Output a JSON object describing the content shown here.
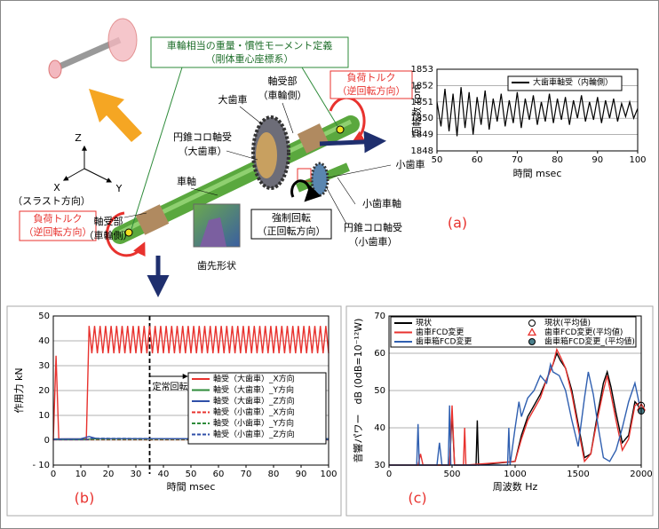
{
  "chart_data": [
    {
      "type": "line",
      "panel_label": "(a)",
      "xlabel": "時間 msec",
      "ylabel": "回転数 rpm",
      "xlim": [
        50,
        100
      ],
      "ylim": [
        1848,
        1853
      ],
      "xticks": [
        50,
        60,
        70,
        80,
        90,
        100
      ],
      "yticks": [
        1848,
        1849,
        1850,
        1851,
        1852,
        1853
      ],
      "grid": true,
      "series": [
        {
          "name": "大歯車軸受（内輪側）",
          "color": "#000000",
          "x": [
            50,
            51,
            52,
            53,
            54,
            55,
            56,
            57,
            58,
            59,
            60,
            61,
            62,
            63,
            64,
            65,
            66,
            67,
            68,
            69,
            70,
            71,
            72,
            73,
            74,
            75,
            76,
            77,
            78,
            79,
            80,
            81,
            82,
            83,
            84,
            85,
            86,
            87,
            88,
            89,
            90,
            91,
            92,
            93,
            94,
            95,
            96,
            97,
            98,
            99,
            100
          ],
          "values": [
            1851.0,
            1849.5,
            1851.8,
            1849.2,
            1851.5,
            1848.9,
            1851.9,
            1849.4,
            1851.6,
            1849.0,
            1851.3,
            1849.6,
            1851.7,
            1849.3,
            1851.2,
            1849.8,
            1851.5,
            1849.5,
            1851.1,
            1849.7,
            1851.6,
            1849.4,
            1851.2,
            1849.9,
            1851.4,
            1849.6,
            1851.0,
            1849.8,
            1851.5,
            1849.7,
            1851.2,
            1849.9,
            1851.3,
            1849.6,
            1851.1,
            1850.0,
            1851.4,
            1849.8,
            1851.0,
            1849.9,
            1851.3,
            1849.7,
            1851.1,
            1850.0,
            1851.2,
            1849.8,
            1850.9,
            1850.1,
            1851.0,
            1850.0,
            1850.6
          ]
        }
      ]
    },
    {
      "type": "line",
      "panel_label": "(b)",
      "xlabel": "時間 msec",
      "ylabel": "作用力 kN",
      "xlim": [
        0,
        100
      ],
      "ylim": [
        -10,
        50
      ],
      "xticks": [
        0,
        10,
        20,
        30,
        40,
        50,
        60,
        70,
        80,
        90,
        100
      ],
      "yticks": [
        {
          "value": -10,
          "label": "- 10"
        },
        0,
        10,
        20,
        30,
        40,
        50
      ],
      "grid": true,
      "annotations": [
        {
          "text": "定常回転",
          "x": 35
        }
      ],
      "series": [
        {
          "name": "軸受（大歯車）_X方向",
          "color": "#e8322e",
          "dashed": false,
          "x": [
            0,
            1,
            2,
            12,
            13,
            14,
            15,
            16,
            17,
            18,
            19,
            20,
            21,
            22,
            23,
            24,
            25,
            26,
            27,
            28,
            29,
            30,
            31,
            32,
            33,
            34,
            35,
            36,
            37,
            38,
            39,
            40,
            41,
            42,
            43,
            44,
            45,
            46,
            47,
            48,
            49,
            50,
            51,
            52,
            53,
            54,
            55,
            56,
            57,
            58,
            59,
            60,
            61,
            62,
            63,
            64,
            65,
            66,
            67,
            68,
            69,
            70,
            71,
            72,
            73,
            74,
            75,
            76,
            77,
            78,
            79,
            80,
            81,
            82,
            83,
            84,
            85,
            86,
            87,
            88,
            89,
            90,
            91,
            92,
            93,
            94,
            95,
            96,
            97,
            98,
            99,
            100
          ],
          "values": [
            0,
            34,
            0.5,
            0.5,
            46,
            35,
            46,
            35,
            46,
            35,
            46,
            35,
            46,
            35,
            46,
            35,
            46,
            35,
            46,
            35,
            46,
            35,
            46,
            35,
            46,
            35,
            46,
            35,
            46,
            35,
            46,
            35,
            46,
            35,
            46,
            35,
            46,
            35,
            46,
            35,
            46,
            35,
            46,
            35,
            46,
            35,
            46,
            35,
            46,
            35,
            46,
            35,
            46,
            35,
            46,
            35,
            46,
            35,
            46,
            35,
            46,
            35,
            46,
            35,
            46,
            35,
            46,
            35,
            46,
            35,
            46,
            35,
            46,
            35,
            46,
            35,
            46,
            35,
            46,
            35,
            46,
            35,
            46,
            35,
            46,
            35,
            46,
            35,
            46,
            35,
            46,
            35
          ]
        },
        {
          "name": "軸受（大歯車）_Y方向",
          "color": "#2e8b3a",
          "dashed": false,
          "x": [
            0,
            12,
            14,
            100
          ],
          "values": [
            0.3,
            0.3,
            0.6,
            0.5
          ]
        },
        {
          "name": "軸受（大歯車）_Z方向",
          "color": "#2f4fa8",
          "dashed": false,
          "x": [
            0,
            10,
            13,
            16,
            100
          ],
          "values": [
            0.5,
            0.6,
            1.5,
            0.6,
            0.6
          ]
        },
        {
          "name": "軸受（小歯車）_X方向",
          "color": "#e8322e",
          "dashed": true,
          "x": [
            0,
            100
          ],
          "values": [
            0.2,
            0.2
          ]
        },
        {
          "name": "軸受（小歯車）_Y方向",
          "color": "#2e8b3a",
          "dashed": true,
          "x": [
            0,
            100
          ],
          "values": [
            0.4,
            0.4
          ]
        },
        {
          "name": "軸受（小歯車）_Z方向",
          "color": "#2f4fa8",
          "dashed": true,
          "x": [
            0,
            12,
            14,
            100
          ],
          "values": [
            0.3,
            0.3,
            0.8,
            0.3
          ]
        }
      ]
    },
    {
      "type": "line",
      "panel_label": "(c)",
      "xlabel": "周波数 Hz",
      "ylabel": "音響パワー　dB (0dB=10⁻¹²W)",
      "xlim": [
        0,
        2000
      ],
      "ylim": [
        30,
        70
      ],
      "xticks": [
        0,
        500,
        1000,
        1500,
        2000
      ],
      "yticks": [
        30,
        40,
        50,
        60,
        70
      ],
      "grid": true,
      "series": [
        {
          "name": "現状",
          "color": "#000000",
          "x": [
            0,
            480,
            500,
            520,
            690,
            700,
            710,
            1000,
            1050,
            1100,
            1150,
            1200,
            1250,
            1300,
            1330,
            1360,
            1400,
            1450,
            1500,
            1550,
            1600,
            1650,
            1700,
            1730,
            1760,
            1800,
            1850,
            1900,
            1950,
            2000
          ],
          "values": [
            30,
            30,
            44,
            30,
            30,
            42,
            30,
            31,
            38,
            43,
            46,
            49,
            53,
            57,
            60,
            58,
            56,
            50,
            41,
            32,
            33,
            43,
            52,
            55,
            51,
            44,
            36,
            38,
            47,
            45
          ]
        },
        {
          "name": "歯車FCD変更",
          "color": "#e8322e",
          "x": [
            0,
            230,
            250,
            270,
            480,
            500,
            520,
            590,
            600,
            610,
            1000,
            1050,
            1100,
            1150,
            1200,
            1250,
            1300,
            1330,
            1360,
            1400,
            1450,
            1500,
            1550,
            1600,
            1650,
            1700,
            1730,
            1760,
            1800,
            1850,
            1900,
            1950,
            2000
          ],
          "values": [
            30,
            30,
            33,
            30,
            30,
            46,
            30,
            30,
            40,
            30,
            31,
            37,
            42,
            45,
            48,
            53,
            57,
            61,
            59,
            56,
            49,
            40,
            31,
            33,
            42,
            50,
            54,
            49,
            42,
            34,
            37,
            46,
            47
          ]
        },
        {
          "name": "歯車箱FCD変更",
          "color": "#2f5fb0",
          "x": [
            0,
            220,
            230,
            240,
            380,
            400,
            420,
            470,
            480,
            490,
            940,
            950,
            960,
            1000,
            1030,
            1050,
            1100,
            1150,
            1200,
            1250,
            1280,
            1300,
            1350,
            1400,
            1450,
            1500,
            1550,
            1580,
            1620,
            1660,
            1700,
            1750,
            1800,
            1850,
            1900,
            1950,
            2000
          ],
          "values": [
            30,
            30,
            41,
            30,
            30,
            36,
            30,
            30,
            46,
            30,
            30,
            40,
            30,
            40,
            47,
            43,
            48,
            50,
            54,
            52,
            57,
            55,
            54,
            50,
            42,
            35,
            48,
            55,
            49,
            40,
            32,
            31,
            34,
            40,
            47,
            52,
            44
          ]
        },
        {
          "name": "現状(平均値)",
          "color": "#000000",
          "marker": "circle-open",
          "x": [
            2000
          ],
          "values": [
            46
          ]
        },
        {
          "name": "歯車FCD変更(平均値)",
          "color": "#e8322e",
          "marker": "triangle-open",
          "x": [
            2000
          ],
          "values": [
            45.5
          ]
        },
        {
          "name": "歯車箱FCD変更_(平均値)",
          "color": "#4a7f8c",
          "marker": "circle-filled",
          "x": [
            2000
          ],
          "values": [
            44.5
          ]
        }
      ]
    }
  ],
  "diagram": {
    "labels": [
      "車輪相当の重量・慣性モーメント定義",
      "（剛体重心座標系）",
      "負荷トルク",
      "（逆回転方向）",
      "軸受部",
      "（車輪側）",
      "大歯車",
      "円錐コロ軸受",
      "（大歯車）",
      "車軸",
      "軸受部",
      "（車輪側）",
      "負荷トルク",
      "（逆回転方向）",
      "小歯車",
      "小歯車軸",
      "円錐コロ軸受",
      "（小歯車）",
      "強制回転",
      "（正回転方向）",
      "歯先形状",
      "Z",
      "X",
      "Y",
      "（スラスト方向）"
    ]
  }
}
